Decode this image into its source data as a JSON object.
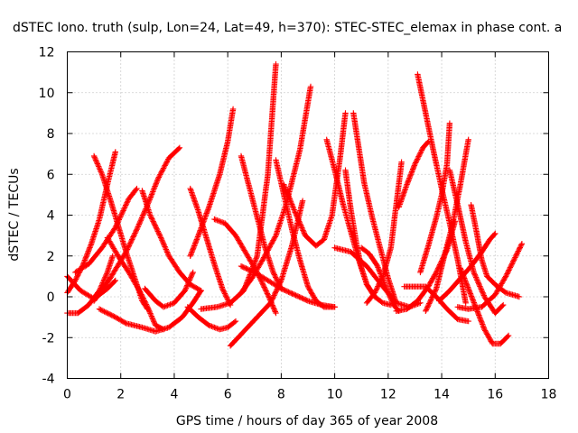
{
  "chart_data": {
    "type": "scatter",
    "title": "dSTEC Iono. truth (sulp, Lon=24, Lat=49, h=370): STEC-STEC_elemax in phase cont. a",
    "xlabel": "GPS time / hours of day 365 of year 2008",
    "ylabel": "dSTEC  / TECUs",
    "xlim": [
      0,
      18
    ],
    "ylim": [
      -4,
      12
    ],
    "x_ticks": [
      "0",
      "2",
      "4",
      "6",
      "8",
      "10",
      "12",
      "14",
      "16",
      "18"
    ],
    "y_ticks": [
      "-4",
      "-2",
      "0",
      "2",
      "4",
      "6",
      "8",
      "10",
      "12"
    ],
    "grid": true,
    "legend": "none",
    "marker": "+",
    "color": "#ff0000",
    "series": [
      {
        "x": [
          0.0,
          0.5,
          1.0,
          1.5,
          1.8
        ],
        "y": [
          1.0,
          0.3,
          -0.1,
          0.4,
          0.8
        ]
      },
      {
        "x": [
          0.0,
          0.4,
          0.8,
          1.2,
          1.5,
          1.7
        ],
        "y": [
          -0.8,
          -0.8,
          -0.4,
          0.3,
          1.2,
          2.0
        ]
      },
      {
        "x": [
          0.0,
          0.3,
          0.6,
          0.9,
          1.2,
          1.5,
          1.8
        ],
        "y": [
          0.2,
          0.8,
          1.6,
          2.6,
          3.8,
          5.5,
          7.1
        ]
      },
      {
        "x": [
          1.0,
          1.3,
          1.6,
          1.9,
          2.2,
          2.5,
          2.8,
          3.0
        ],
        "y": [
          6.9,
          6.0,
          4.8,
          3.5,
          2.2,
          1.0,
          -0.2,
          -0.6
        ]
      },
      {
        "x": [
          1.0,
          1.6,
          2.2,
          2.6,
          3.0,
          3.4,
          3.8,
          4.2
        ],
        "y": [
          -0.2,
          0.9,
          2.2,
          3.3,
          4.5,
          5.8,
          6.8,
          7.3
        ]
      },
      {
        "x": [
          1.5,
          1.9,
          2.3,
          2.7,
          3.0,
          3.3,
          3.6
        ],
        "y": [
          2.9,
          2.0,
          1.2,
          0.3,
          -0.5,
          -1.4,
          -1.6
        ]
      },
      {
        "x": [
          0.3,
          0.8,
          1.3,
          1.8,
          2.3,
          2.6
        ],
        "y": [
          1.2,
          1.6,
          2.4,
          3.4,
          4.8,
          5.3
        ]
      },
      {
        "x": [
          1.2,
          1.8,
          2.2,
          2.8,
          3.3,
          3.8,
          4.3,
          4.7,
          5.0
        ],
        "y": [
          -0.6,
          -1.0,
          -1.3,
          -1.5,
          -1.7,
          -1.5,
          -1.0,
          -0.3,
          0.3
        ]
      },
      {
        "x": [
          2.8,
          3.1,
          3.5,
          3.8,
          4.2,
          4.6,
          5.0
        ],
        "y": [
          5.2,
          4.0,
          2.9,
          2.0,
          1.2,
          0.6,
          0.3
        ]
      },
      {
        "x": [
          2.9,
          3.3,
          3.6,
          4.0,
          4.4,
          4.7
        ],
        "y": [
          0.4,
          -0.2,
          -0.5,
          -0.3,
          0.3,
          1.2
        ]
      },
      {
        "x": [
          4.6,
          4.9,
          5.2,
          5.5,
          5.8,
          6.1
        ],
        "y": [
          5.3,
          4.2,
          2.9,
          1.6,
          0.4,
          -0.4
        ]
      },
      {
        "x": [
          4.5,
          4.9,
          5.3,
          5.7,
          6.0,
          6.3
        ],
        "y": [
          -0.5,
          -1.0,
          -1.4,
          -1.6,
          -1.5,
          -1.2
        ]
      },
      {
        "x": [
          4.6,
          4.9,
          5.3,
          5.7,
          6.0,
          6.2
        ],
        "y": [
          2.0,
          3.0,
          4.4,
          6.0,
          7.6,
          9.2
        ]
      },
      {
        "x": [
          5.5,
          5.9,
          6.3,
          6.7,
          7.1,
          7.5,
          7.8
        ],
        "y": [
          3.8,
          3.6,
          3.0,
          2.1,
          1.2,
          0.1,
          -0.8
        ]
      },
      {
        "x": [
          5.0,
          5.6,
          6.1,
          6.6,
          7.1,
          7.5,
          7.8
        ],
        "y": [
          -0.6,
          -0.5,
          -0.3,
          0.3,
          2.0,
          6.0,
          11.4
        ]
      },
      {
        "x": [
          6.1,
          6.6,
          7.1,
          7.6,
          8.0,
          8.4,
          8.8
        ],
        "y": [
          -2.4,
          -1.7,
          -1.0,
          -0.3,
          0.8,
          2.5,
          4.7
        ]
      },
      {
        "x": [
          6.5,
          6.8,
          7.1,
          7.4,
          7.7,
          8.0
        ],
        "y": [
          6.9,
          5.4,
          3.9,
          2.4,
          1.2,
          0.4
        ]
      },
      {
        "x": [
          6.5,
          6.9,
          7.3,
          7.8,
          8.2,
          8.7,
          9.1
        ],
        "y": [
          0.2,
          0.9,
          1.8,
          3.0,
          4.6,
          7.2,
          10.3
        ]
      },
      {
        "x": [
          7.8,
          8.1,
          8.4,
          8.7,
          9.0,
          9.3,
          9.6,
          10.0
        ],
        "y": [
          6.7,
          5.0,
          3.3,
          1.8,
          0.5,
          -0.2,
          -0.5,
          -0.5
        ]
      },
      {
        "x": [
          8.1,
          8.5,
          8.9,
          9.3,
          9.6,
          9.9,
          10.2,
          10.4
        ],
        "y": [
          5.5,
          4.2,
          3.0,
          2.5,
          2.8,
          4.0,
          6.8,
          9.0
        ]
      },
      {
        "x": [
          6.5,
          7.0,
          7.5,
          8.0,
          8.5,
          9.0,
          9.5,
          10.0
        ],
        "y": [
          1.5,
          1.2,
          0.8,
          0.4,
          0.1,
          -0.2,
          -0.4,
          -0.5
        ]
      },
      {
        "x": [
          9.7,
          10.0,
          10.3,
          10.6,
          10.9,
          11.2,
          11.5
        ],
        "y": [
          7.7,
          6.2,
          4.6,
          3.2,
          1.8,
          0.6,
          0.0
        ]
      },
      {
        "x": [
          10.4,
          10.6,
          10.8,
          11.0,
          11.2,
          11.5,
          11.8,
          12.1
        ],
        "y": [
          6.2,
          4.3,
          2.7,
          1.4,
          0.6,
          0.0,
          -0.3,
          -0.4
        ]
      },
      {
        "x": [
          10.7,
          10.9,
          11.1,
          11.4,
          11.7,
          12.0,
          12.3
        ],
        "y": [
          9.0,
          7.3,
          5.6,
          3.9,
          2.4,
          0.9,
          -0.3
        ]
      },
      {
        "x": [
          11.0,
          11.3,
          11.6,
          11.9,
          12.2,
          12.4
        ],
        "y": [
          2.4,
          2.1,
          1.5,
          0.5,
          -0.4,
          -0.7
        ]
      },
      {
        "x": [
          11.2,
          11.5,
          11.8,
          12.1,
          12.3,
          12.5
        ],
        "y": [
          -0.3,
          0.2,
          1.0,
          2.4,
          4.5,
          6.6
        ]
      },
      {
        "x": [
          10.0,
          10.6,
          11.2,
          11.8,
          12.3,
          12.8,
          13.2
        ],
        "y": [
          2.4,
          2.2,
          1.5,
          0.5,
          -0.3,
          -0.5,
          -0.3
        ]
      },
      {
        "x": [
          12.3,
          12.7,
          13.1,
          13.5,
          13.8,
          14.2,
          14.5
        ],
        "y": [
          -0.7,
          -0.6,
          -0.2,
          0.5,
          1.2,
          2.3,
          3.7
        ]
      },
      {
        "x": [
          12.4,
          12.7,
          13.0,
          13.3,
          13.5
        ],
        "y": [
          4.4,
          5.5,
          6.5,
          7.3,
          7.6
        ]
      },
      {
        "x": [
          13.1,
          13.4,
          13.7,
          14.0,
          14.3,
          14.6,
          14.9
        ],
        "y": [
          10.9,
          9.0,
          7.1,
          5.3,
          3.6,
          1.8,
          -0.3
        ]
      },
      {
        "x": [
          13.2,
          13.5,
          13.8,
          14.0,
          14.2,
          14.3
        ],
        "y": [
          1.2,
          2.5,
          3.9,
          5.0,
          6.5,
          8.5
        ]
      },
      {
        "x": [
          13.4,
          13.8,
          14.1,
          14.4,
          14.7,
          15.0
        ],
        "y": [
          -0.7,
          0.4,
          2.0,
          3.5,
          5.5,
          7.7
        ]
      },
      {
        "x": [
          12.6,
          13.0,
          13.4,
          13.8,
          14.2,
          14.6,
          15.0
        ],
        "y": [
          0.5,
          0.5,
          0.5,
          0.0,
          -0.6,
          -1.1,
          -1.2
        ]
      },
      {
        "x": [
          13.9,
          14.3,
          14.7,
          15.1,
          15.5,
          15.8,
          16.0
        ],
        "y": [
          -0.2,
          0.3,
          0.9,
          1.5,
          2.2,
          2.8,
          3.1
        ]
      },
      {
        "x": [
          14.3,
          14.6,
          14.9,
          15.2,
          15.6,
          16.0,
          16.3
        ],
        "y": [
          6.2,
          4.5,
          2.7,
          1.2,
          0.0,
          -0.8,
          -0.4
        ]
      },
      {
        "x": [
          14.7,
          15.0,
          15.3,
          15.6,
          15.9,
          16.2,
          16.5
        ],
        "y": [
          1.4,
          0.4,
          -0.6,
          -1.6,
          -2.3,
          -2.3,
          -1.9
        ]
      },
      {
        "x": [
          14.6,
          15.0,
          15.5,
          16.0,
          16.4,
          16.7,
          17.0
        ],
        "y": [
          -0.5,
          -0.6,
          -0.5,
          0.1,
          1.0,
          1.8,
          2.6
        ]
      },
      {
        "x": [
          15.1,
          15.3,
          15.5,
          15.7,
          16.0,
          16.4,
          16.9
        ],
        "y": [
          4.5,
          3.2,
          1.8,
          1.0,
          0.6,
          0.2,
          0.0
        ]
      }
    ]
  }
}
